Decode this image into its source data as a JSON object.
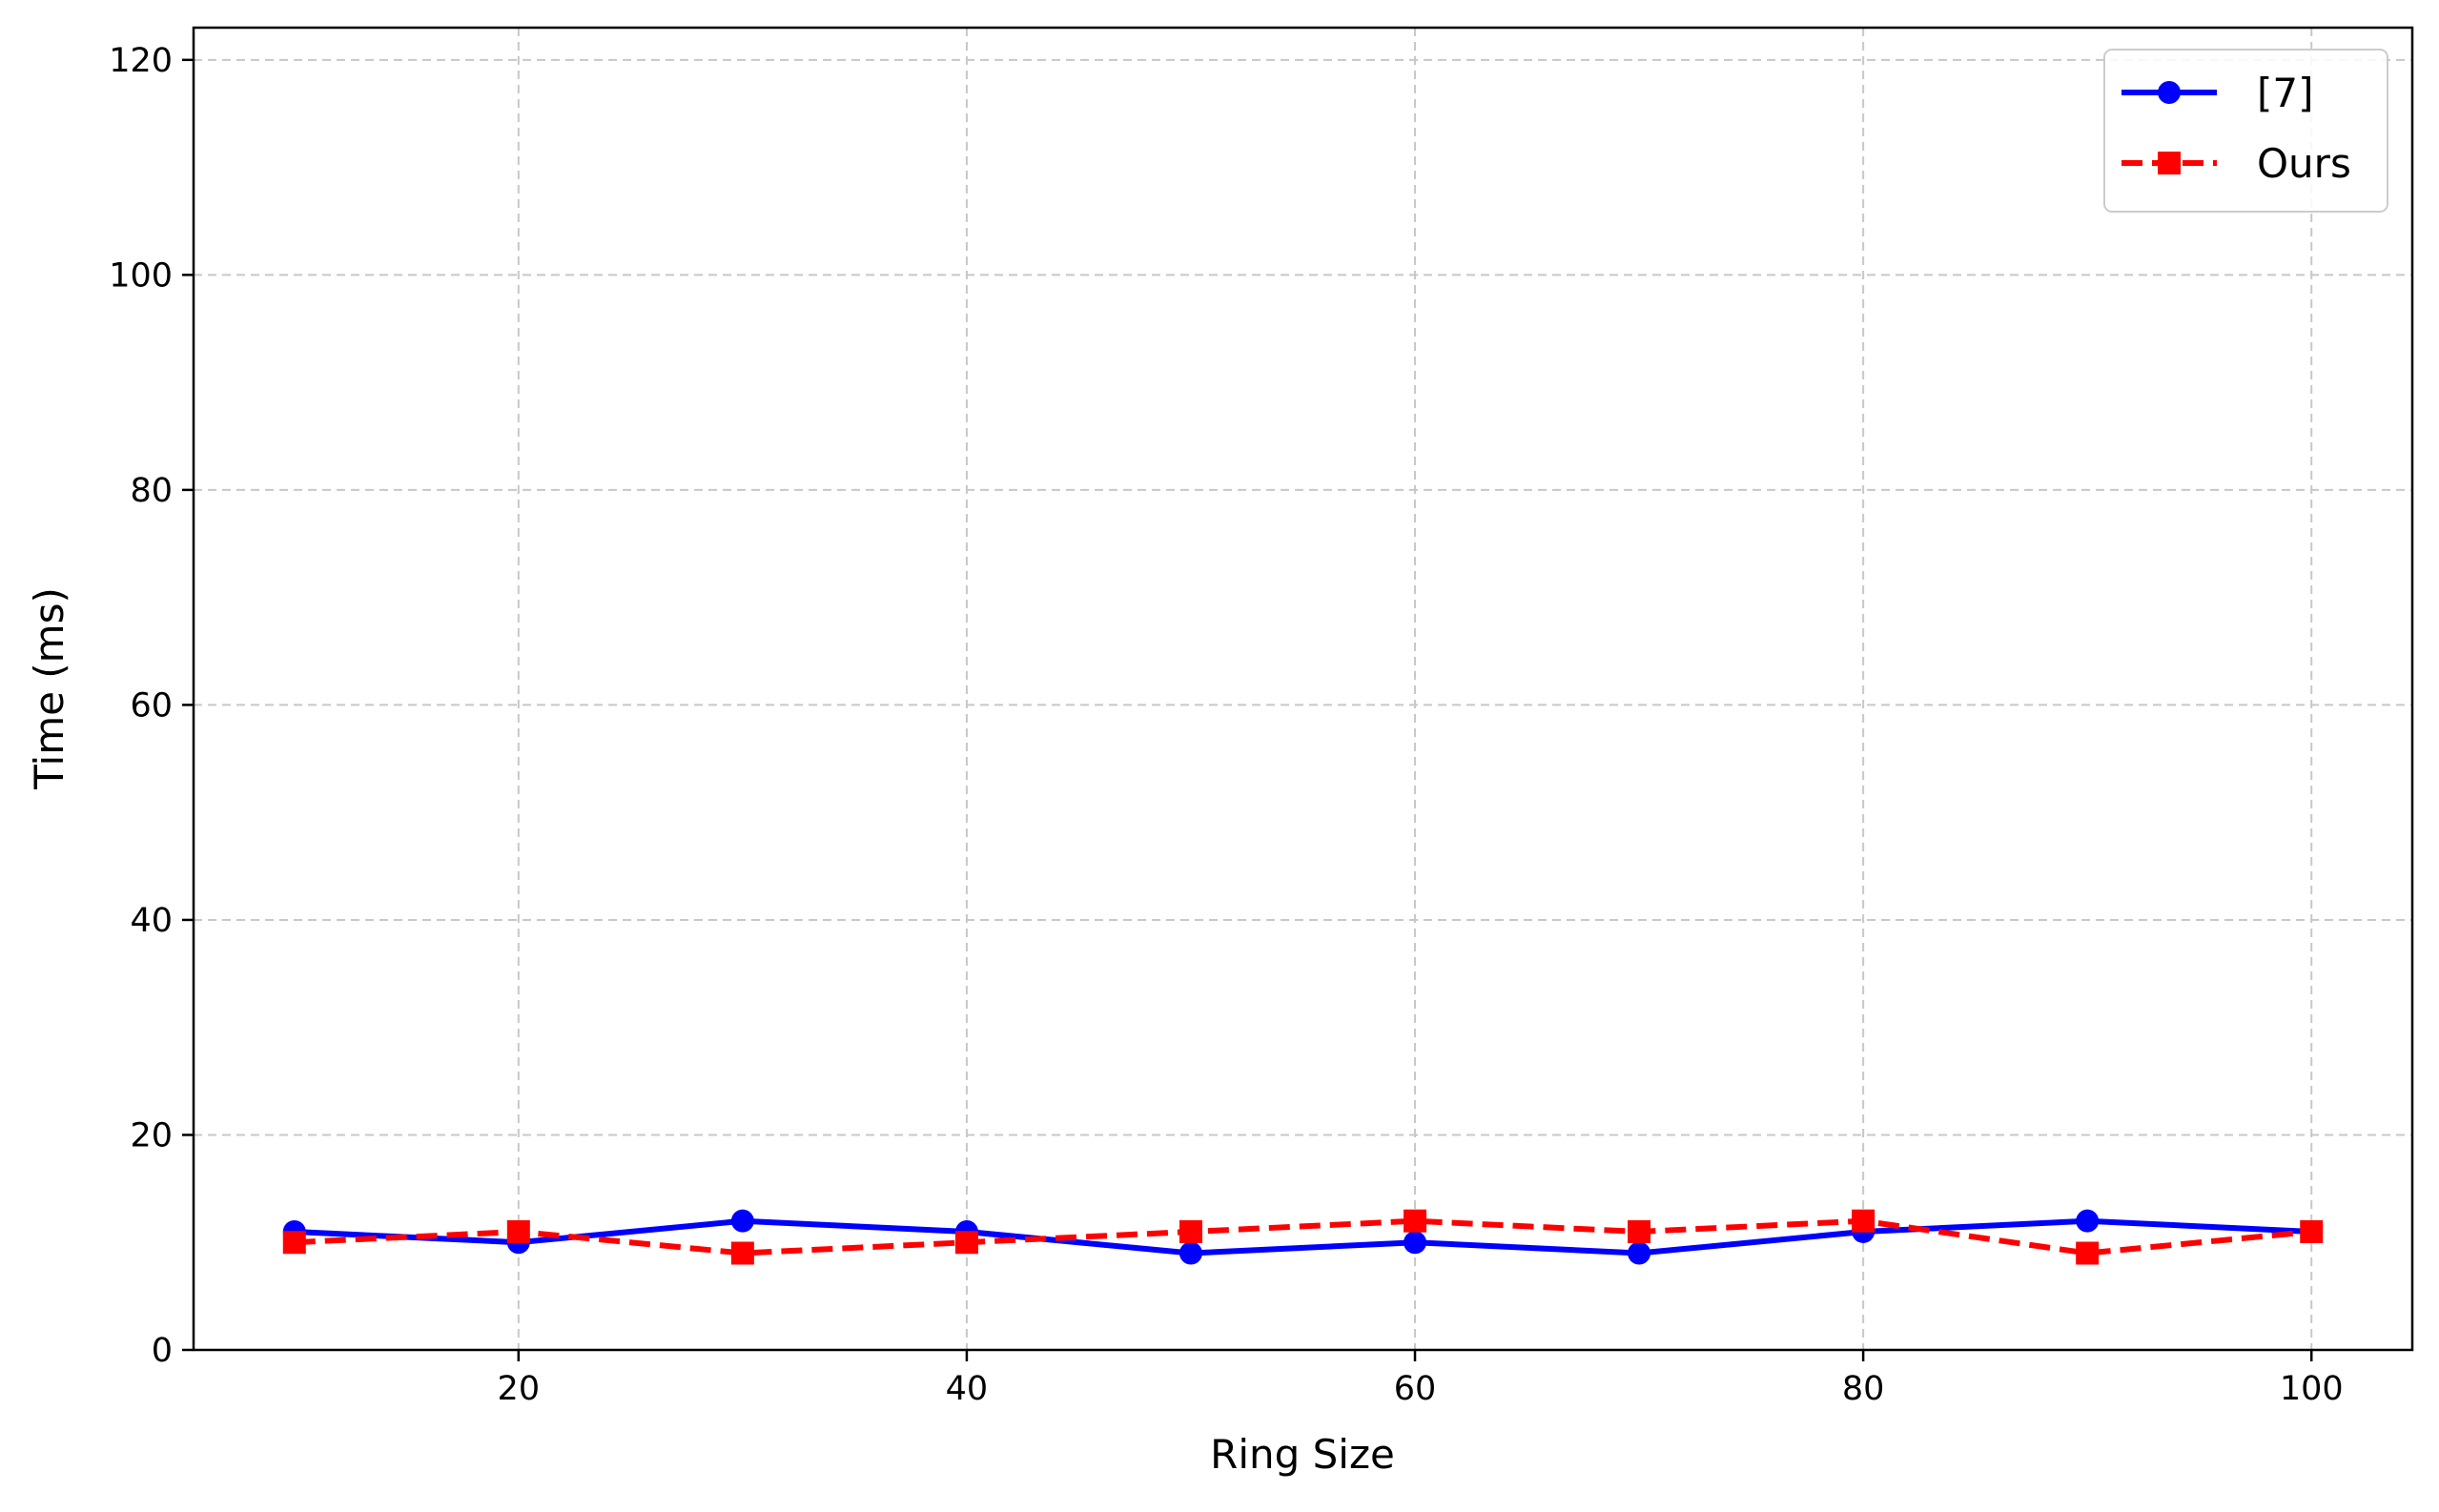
{
  "chart_data": {
    "type": "line",
    "title": "",
    "xlabel": "Ring Size",
    "ylabel": "Time (ms)",
    "x": [
      10,
      20,
      30,
      40,
      50,
      60,
      70,
      80,
      90,
      100
    ],
    "xticks": [
      20,
      40,
      60,
      80,
      100
    ],
    "yticks": [
      0,
      20,
      40,
      60,
      80,
      100,
      120
    ],
    "xlim": [
      5.5,
      104.5
    ],
    "ylim": [
      0,
      123
    ],
    "grid": true,
    "legend_position": "top-right",
    "series": [
      {
        "name": "[7]",
        "values": [
          11,
          10,
          12,
          11,
          9,
          10,
          9,
          11,
          12,
          11
        ],
        "color": "#0000ff",
        "line_style": "solid",
        "marker": "circle"
      },
      {
        "name": "Ours",
        "values": [
          10,
          11,
          9,
          10,
          11,
          12,
          11,
          12,
          9,
          11
        ],
        "color": "#ff0000",
        "line_style": "dashed",
        "marker": "square"
      }
    ]
  }
}
